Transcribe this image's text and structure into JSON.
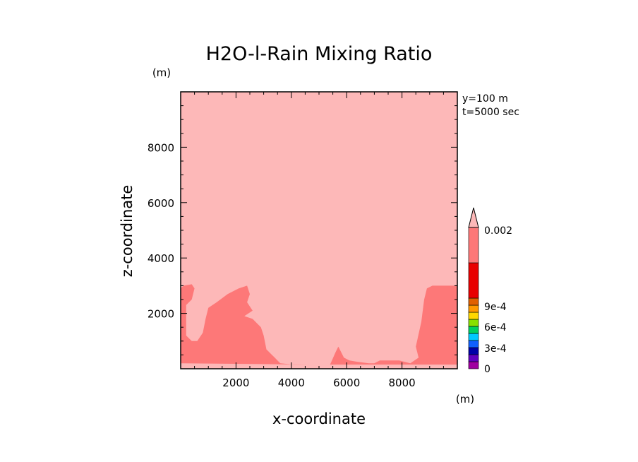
{
  "chart_data": {
    "type": "contour",
    "title": "H2O-l-Rain Mixing Ratio",
    "xlabel": "x-coordinate",
    "ylabel": "z-coordinate",
    "x_unit": "(m)",
    "y_unit": "(m)",
    "info_lines": [
      "y=100 m",
      "t=5000 sec"
    ],
    "xlim": [
      0,
      10000
    ],
    "ylim": [
      0,
      10000
    ],
    "xticks": [
      2000,
      4000,
      6000,
      8000
    ],
    "yticks": [
      2000,
      4000,
      6000,
      8000
    ],
    "xtick_labels": [
      "2000",
      "4000",
      "6000",
      "8000"
    ],
    "ytick_labels": [
      "2000",
      "4000",
      "6000",
      "8000"
    ],
    "background_color": "#fdb8b8",
    "regions": [
      {
        "name": "left-region",
        "level": ">0.002",
        "color": "#fd7878",
        "points": [
          [
            0,
            200
          ],
          [
            0,
            2900
          ],
          [
            100,
            3000
          ],
          [
            400,
            3050
          ],
          [
            500,
            2900
          ],
          [
            400,
            2500
          ],
          [
            200,
            2300
          ],
          [
            200,
            1200
          ],
          [
            400,
            1000
          ],
          [
            600,
            1000
          ],
          [
            800,
            1300
          ],
          [
            900,
            1800
          ],
          [
            1000,
            2200
          ],
          [
            1300,
            2400
          ],
          [
            1700,
            2700
          ],
          [
            2100,
            2900
          ],
          [
            2400,
            3000
          ],
          [
            2500,
            2700
          ],
          [
            2400,
            2400
          ],
          [
            2600,
            2100
          ],
          [
            2300,
            1900
          ],
          [
            2600,
            1800
          ],
          [
            2900,
            1500
          ],
          [
            3000,
            1200
          ],
          [
            3100,
            700
          ],
          [
            3400,
            400
          ],
          [
            3600,
            200
          ],
          [
            4100,
            150
          ],
          [
            4700,
            150
          ]
        ]
      },
      {
        "name": "bottom-right-region",
        "level": ">0.002",
        "color": "#fd7878",
        "points": [
          [
            5400,
            150
          ],
          [
            5600,
            600
          ],
          [
            5700,
            800
          ],
          [
            5800,
            600
          ],
          [
            5900,
            400
          ],
          [
            6100,
            300
          ],
          [
            6400,
            250
          ],
          [
            6800,
            200
          ],
          [
            7000,
            200
          ],
          [
            7200,
            300
          ],
          [
            7500,
            300
          ],
          [
            7900,
            300
          ],
          [
            8300,
            200
          ],
          [
            8600,
            400
          ],
          [
            8500,
            800
          ],
          [
            8700,
            1700
          ],
          [
            8800,
            2500
          ],
          [
            8900,
            2900
          ],
          [
            9100,
            3000
          ],
          [
            10000,
            3000
          ],
          [
            10000,
            150
          ]
        ]
      }
    ],
    "colorbar": {
      "labels": [
        "0",
        "3e-4",
        "6e-4",
        "9e-4",
        "0.002"
      ],
      "level_values": [
        0,
        0.0003,
        0.0006,
        0.0009,
        0.002
      ],
      "colors": [
        "#a000a0",
        "#6000c0",
        "#0000a8",
        "#1060ff",
        "#00c8ff",
        "#00d060",
        "#88e000",
        "#ffd800",
        "#ff9900",
        "#e06000",
        "#e80000",
        "#fd7878",
        "#fdb8b8"
      ]
    }
  }
}
